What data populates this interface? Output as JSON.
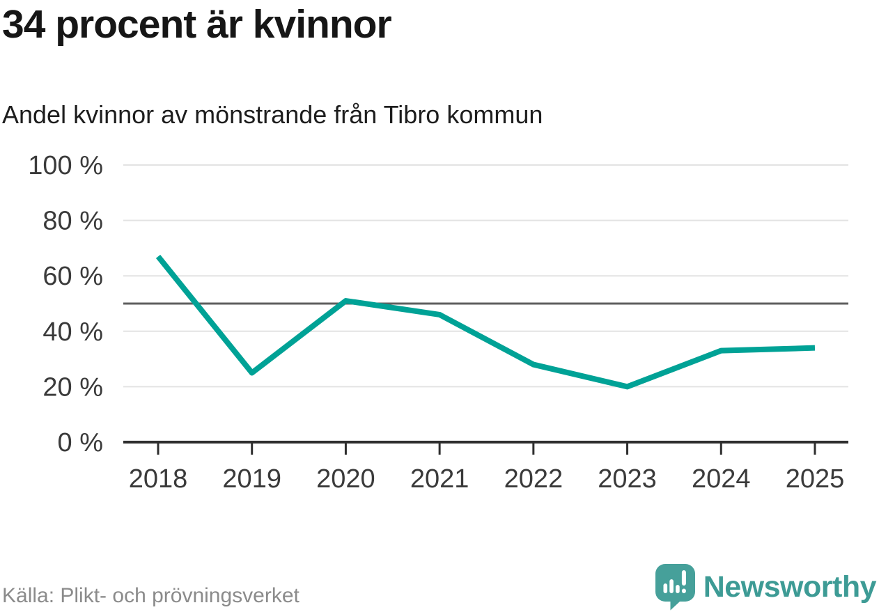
{
  "header": {
    "title": "34 procent är kvinnor",
    "subtitle": "Andel kvinnor av mönstrande från Tibro kommun"
  },
  "chart_data": {
    "type": "line",
    "categories": [
      "2018",
      "2019",
      "2020",
      "2021",
      "2022",
      "2023",
      "2024",
      "2025"
    ],
    "values": [
      67,
      25,
      51,
      46,
      28,
      20,
      33,
      34
    ],
    "series_name": "Andel kvinnor av mönstrande",
    "title": "34 procent är kvinnor",
    "subtitle": "Andel kvinnor av mönstrande från Tibro kommun",
    "xlabel": "",
    "ylabel": "",
    "unit": "%",
    "ylim": [
      0,
      100
    ],
    "yticks": [
      0,
      20,
      40,
      60,
      80,
      100
    ],
    "ytick_label_suffix": " %",
    "reference_line": 50,
    "grid": "horizontal",
    "legend": "none"
  },
  "footer": {
    "source": "Källa: Plikt- och prövningsverket"
  },
  "logo": {
    "brand": "Newsworthy"
  },
  "colors": {
    "line": "#00a296",
    "reference_line": "#5f5f5f",
    "gridline": "#e3e3e3",
    "axis": "#2e2e2e",
    "tick_label": "#3a3a3a",
    "title_text": "#161616",
    "source_text": "#8b8b8b",
    "logo_teal": "#46a09a",
    "logo_text_teal": "#3d9b95"
  }
}
